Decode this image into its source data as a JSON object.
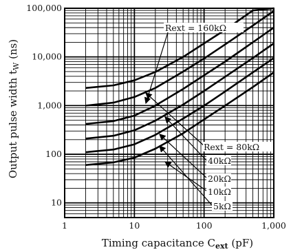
{
  "chart_data": {
    "type": "line",
    "title": "",
    "xlabel": "Timing capacitance C",
    "xlabel_sub": "ext",
    "xlabel_unit": " (pF)",
    "ylabel": "Output pulse width t",
    "ylabel_sub": "W",
    "ylabel_unit": " (ns)",
    "x_scale": "log",
    "y_scale": "log",
    "xlim": [
      1,
      1000
    ],
    "ylim": [
      5,
      100000
    ],
    "x_ticks": [
      {
        "value": 1,
        "label": "1"
      },
      {
        "value": 10,
        "label": "10"
      },
      {
        "value": 100,
        "label": "100"
      },
      {
        "value": 1000,
        "label": "1,000"
      }
    ],
    "y_ticks": [
      {
        "value": 10,
        "label": "10"
      },
      {
        "value": 100,
        "label": "100"
      },
      {
        "value": 1000,
        "label": "1,000"
      },
      {
        "value": 10000,
        "label": "10,000"
      },
      {
        "value": 100000,
        "label": "100,000"
      }
    ],
    "grid": true,
    "series": [
      {
        "name": "Rext = 160kΩ",
        "x": [
          2,
          5,
          10,
          20,
          50,
          100,
          200,
          500,
          1000
        ],
        "y": [
          2300,
          2600,
          3300,
          4900,
          10000,
          19000,
          36000,
          90000,
          180000
        ]
      },
      {
        "name": "Rext = 80kΩ",
        "x": [
          2,
          5,
          10,
          20,
          50,
          100,
          200,
          500,
          1000
        ],
        "y": [
          1000,
          1150,
          1500,
          2300,
          5000,
          9300,
          18000,
          44000,
          88000
        ]
      },
      {
        "name": "40kΩ",
        "x": [
          2,
          5,
          10,
          20,
          50,
          100,
          200,
          500,
          1000
        ],
        "y": [
          420,
          480,
          620,
          1000,
          2200,
          4200,
          8000,
          20000,
          40000
        ]
      },
      {
        "name": "20kΩ",
        "x": [
          2,
          5,
          10,
          20,
          50,
          100,
          200,
          500,
          1000
        ],
        "y": [
          210,
          240,
          310,
          490,
          1050,
          2000,
          3900,
          9500,
          19000
        ]
      },
      {
        "name": "10kΩ",
        "x": [
          2,
          5,
          10,
          20,
          50,
          100,
          200,
          500,
          1000
        ],
        "y": [
          110,
          125,
          160,
          250,
          540,
          1000,
          1950,
          4800,
          9500
        ]
      },
      {
        "name": "5kΩ",
        "x": [
          2,
          5,
          10,
          20,
          50,
          100,
          200,
          500,
          1000
        ],
        "y": [
          60,
          68,
          85,
          130,
          270,
          520,
          1000,
          2400,
          4800
        ]
      }
    ],
    "annotations": [
      {
        "text": "Rext = 160kΩ"
      },
      {
        "text": "Rext = 80kΩ"
      },
      {
        "text": "40kΩ"
      },
      {
        "text": "20kΩ"
      },
      {
        "text": "10kΩ"
      },
      {
        "text": "5kΩ"
      }
    ]
  }
}
